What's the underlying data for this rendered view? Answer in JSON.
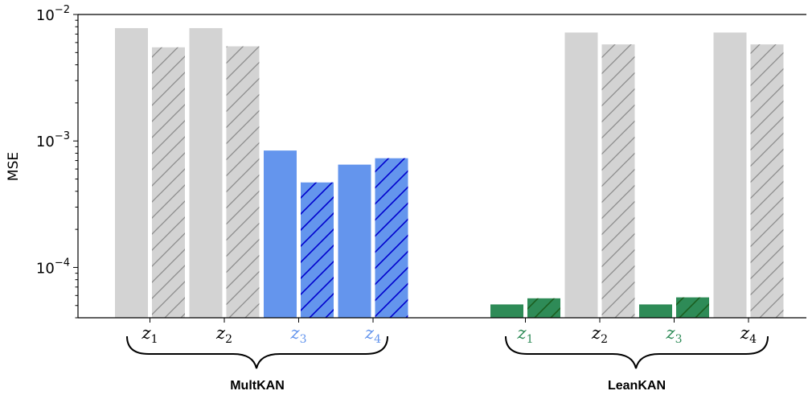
{
  "colors": {
    "gray": "#d3d3d3",
    "blue": "#6495ed",
    "green": "#2e8b57",
    "blue_hatch": "#0000cd",
    "green_hatch": "#1b5e20",
    "gray_hatch": "#8c8c8c"
  },
  "chart_data": {
    "type": "bar",
    "ylabel": "MSE",
    "yscale": "log",
    "ylim": [
      4e-05,
      0.01
    ],
    "yticks": [
      {
        "value": 0.0001,
        "base": "10",
        "exp": "−4"
      },
      {
        "value": 0.001,
        "base": "10",
        "exp": "−3"
      },
      {
        "value": 0.01,
        "base": "10",
        "exp": "−2"
      }
    ],
    "groups": [
      {
        "label": "MultKAN",
        "categories": [
          {
            "base": "z",
            "sub": "1",
            "color_key": "gray",
            "values": [
              0.0078,
              0.0055
            ]
          },
          {
            "base": "z",
            "sub": "2",
            "color_key": "gray",
            "values": [
              0.0078,
              0.0056
            ]
          },
          {
            "base": "z",
            "sub": "3",
            "color_key": "blue",
            "values": [
              0.00084,
              0.00047
            ]
          },
          {
            "base": "z",
            "sub": "4",
            "color_key": "blue",
            "values": [
              0.00065,
              0.00073
            ]
          }
        ]
      },
      {
        "label": "LeanKAN",
        "categories": [
          {
            "base": "z",
            "sub": "1",
            "color_key": "green",
            "values": [
              5.1e-05,
              5.7e-05
            ]
          },
          {
            "base": "z",
            "sub": "2",
            "color_key": "gray",
            "values": [
              0.0072,
              0.0058
            ]
          },
          {
            "base": "z",
            "sub": "3",
            "color_key": "green",
            "values": [
              5.1e-05,
              5.8e-05
            ]
          },
          {
            "base": "z",
            "sub": "4",
            "color_key": "gray",
            "values": [
              0.0072,
              0.0058
            ]
          }
        ]
      }
    ],
    "grid": false,
    "legend": "none"
  }
}
